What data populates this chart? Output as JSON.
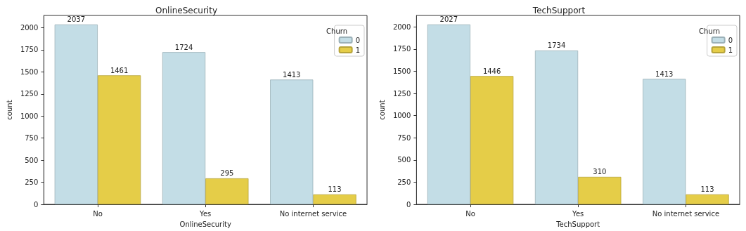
{
  "chart_data": [
    {
      "type": "bar",
      "title": "OnlineSecurity",
      "xlabel": "OnlineSecurity",
      "ylabel": "count",
      "legend_title": "Churn",
      "categories": [
        "No",
        "Yes",
        "No internet service"
      ],
      "series": [
        {
          "name": "0",
          "color": "#c3dde6",
          "values": [
            2037,
            1724,
            1413
          ]
        },
        {
          "name": "1",
          "color": "#e5cd48",
          "values": [
            1461,
            295,
            113
          ]
        }
      ],
      "ylim": [
        0,
        2139
      ],
      "yticks": [
        0,
        250,
        500,
        750,
        1000,
        1250,
        1500,
        1750,
        2000
      ],
      "grid": false,
      "legend": "top right",
      "data_labels": true
    },
    {
      "type": "bar",
      "title": "TechSupport",
      "xlabel": "TechSupport",
      "ylabel": "count",
      "legend_title": "Churn",
      "categories": [
        "No",
        "Yes",
        "No internet service"
      ],
      "series": [
        {
          "name": "0",
          "color": "#c3dde6",
          "values": [
            2027,
            1734,
            1413
          ]
        },
        {
          "name": "1",
          "color": "#e5cd48",
          "values": [
            1446,
            310,
            113
          ]
        }
      ],
      "ylim": [
        0,
        2128
      ],
      "yticks": [
        0,
        250,
        500,
        750,
        1000,
        1250,
        1500,
        1750,
        2000
      ],
      "grid": false,
      "legend": "top right",
      "data_labels": true
    }
  ]
}
